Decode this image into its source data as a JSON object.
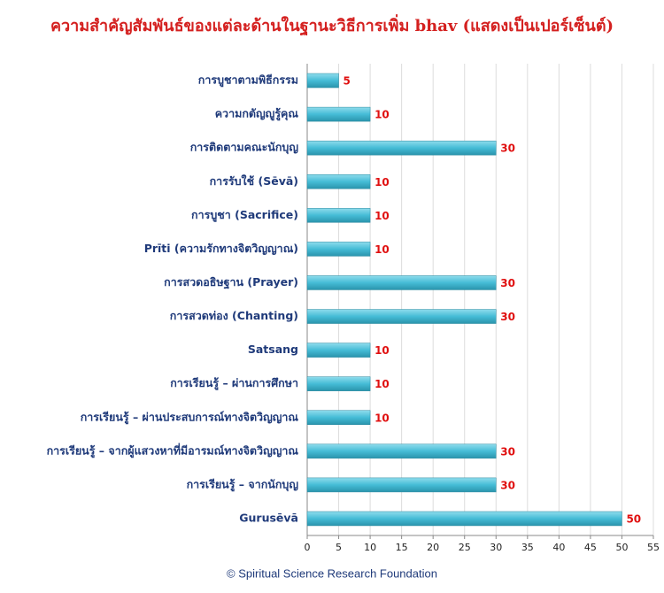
{
  "chart_data": {
    "type": "barh",
    "title": "ความสำคัญสัมพันธ์ของแต่ละด้านในฐานะวิธีการเพิ่ม bhav (แสดงเป็นเปอร์เซ็นต์)",
    "categories": [
      "การบูชาตามพิธีกรรม",
      "ความกตัญญูรู้คุณ",
      "การติดตามคณะนักบุญ",
      "การรับใช้ (Sēvā)",
      "การบูชา (Sacrifice)",
      "Prīti (ความรักทางจิตวิญญาณ)",
      "การสวดอธิษฐาน (Prayer)",
      "การสวดท่อง (Chanting)",
      "Satsang",
      "การเรียนรู้ – ผ่านการศึกษา",
      "การเรียนรู้ – ผ่านประสบการณ์ทางจิตวิญญาณ",
      "การเรียนรู้ – จากผู้แสวงหาที่มีอารมณ์ทางจิตวิญญาณ",
      "การเรียนรู้ – จากนักบุญ",
      "Gurusēvā"
    ],
    "values": [
      5,
      10,
      30,
      10,
      10,
      10,
      30,
      30,
      10,
      10,
      10,
      30,
      30,
      50
    ],
    "color": "#45bcd6",
    "xlim": [
      0,
      55
    ],
    "xticks": [
      0,
      5,
      10,
      15,
      20,
      25,
      30,
      35,
      40,
      45,
      50,
      55
    ],
    "grid": true,
    "footer": "©  Spiritual Science Research Foundation"
  }
}
